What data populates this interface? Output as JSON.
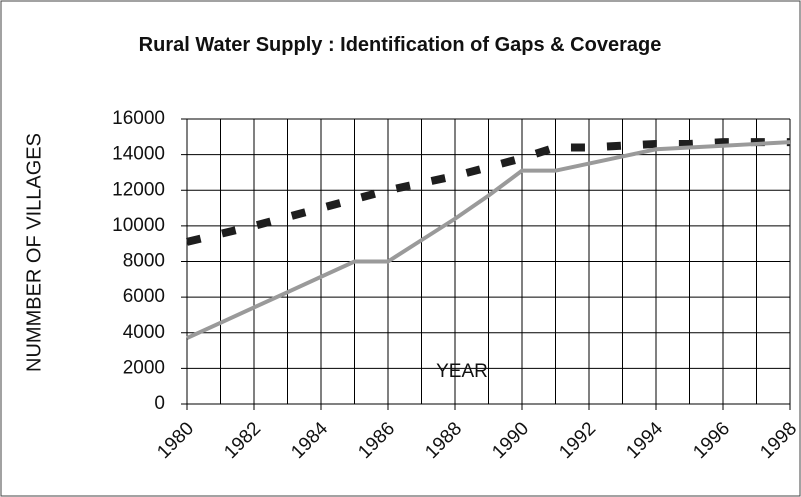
{
  "chart_data": {
    "type": "line",
    "title": "Rural Water Supply : Identification of Gaps & Coverage",
    "x_label": "YEAR",
    "y_label": "NUMMBER OF VILLAGES",
    "x": [
      1980,
      1981,
      1982,
      1983,
      1984,
      1985,
      1986,
      1987,
      1988,
      1989,
      1990,
      1991,
      1992,
      1993,
      1994,
      1995,
      1996,
      1997,
      1998
    ],
    "series": [
      {
        "color": "#1e1e1e",
        "dashed": true,
        "values": [
          9100,
          9550,
          10000,
          10500,
          11000,
          11500,
          12000,
          12400,
          12800,
          13300,
          13800,
          14400,
          14400,
          14500,
          14600,
          14600,
          14700,
          14700,
          14700
        ]
      },
      {
        "color": "#9a9a9a",
        "dashed": false,
        "values": [
          3700,
          4560,
          5420,
          6280,
          7140,
          8000,
          8000,
          9200,
          10400,
          11700,
          13100,
          13100,
          13500,
          13900,
          14300,
          14400,
          14500,
          14600,
          14700
        ]
      }
    ],
    "xlim": [
      1980,
      1998
    ],
    "xticks": [
      1980,
      1982,
      1984,
      1986,
      1988,
      1990,
      1992,
      1994,
      1996,
      1998
    ],
    "ylim": [
      0,
      16000
    ],
    "yticks": [
      0,
      2000,
      4000,
      6000,
      8000,
      10000,
      12000,
      14000,
      16000
    ],
    "grid": true
  }
}
